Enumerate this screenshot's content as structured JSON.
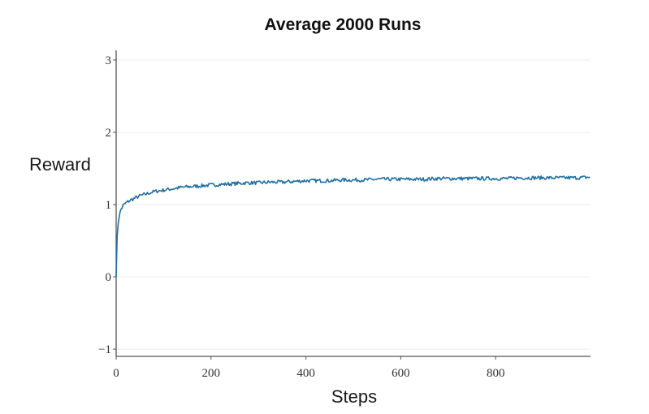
{
  "chart_data": {
    "type": "line",
    "title": "Average 2000 Runs",
    "xlabel": "Steps",
    "ylabel": "Reward",
    "xlim": [
      0,
      1000
    ],
    "ylim": [
      -1.1,
      3.1
    ],
    "xticks": [
      0,
      200,
      400,
      600,
      800
    ],
    "yticks": [
      -1,
      0,
      1,
      2,
      3
    ],
    "xtick_labels": [
      "0",
      "200",
      "400",
      "600",
      "800"
    ],
    "ytick_labels": [
      "−1",
      "0",
      "1",
      "2",
      "3"
    ],
    "grid": true,
    "series": [
      {
        "color": "#1f6fa0",
        "x": [
          0,
          2,
          5,
          10,
          15,
          20,
          30,
          40,
          50,
          60,
          70,
          80,
          90,
          100,
          120,
          140,
          160,
          180,
          200,
          225,
          250,
          275,
          300,
          325,
          350,
          375,
          400,
          425,
          450,
          475,
          500,
          525,
          550,
          575,
          600,
          625,
          650,
          675,
          700,
          725,
          750,
          775,
          800,
          825,
          850,
          875,
          900,
          925,
          950,
          975,
          1000
        ],
        "y": [
          0.0,
          0.55,
          0.8,
          0.93,
          0.99,
          1.02,
          1.06,
          1.09,
          1.12,
          1.14,
          1.16,
          1.18,
          1.19,
          1.2,
          1.22,
          1.24,
          1.25,
          1.26,
          1.27,
          1.28,
          1.29,
          1.3,
          1.3,
          1.31,
          1.31,
          1.32,
          1.33,
          1.33,
          1.33,
          1.34,
          1.34,
          1.34,
          1.35,
          1.35,
          1.35,
          1.35,
          1.35,
          1.36,
          1.36,
          1.36,
          1.36,
          1.36,
          1.36,
          1.36,
          1.37,
          1.37,
          1.37,
          1.37,
          1.37,
          1.37,
          1.38
        ]
      }
    ]
  }
}
